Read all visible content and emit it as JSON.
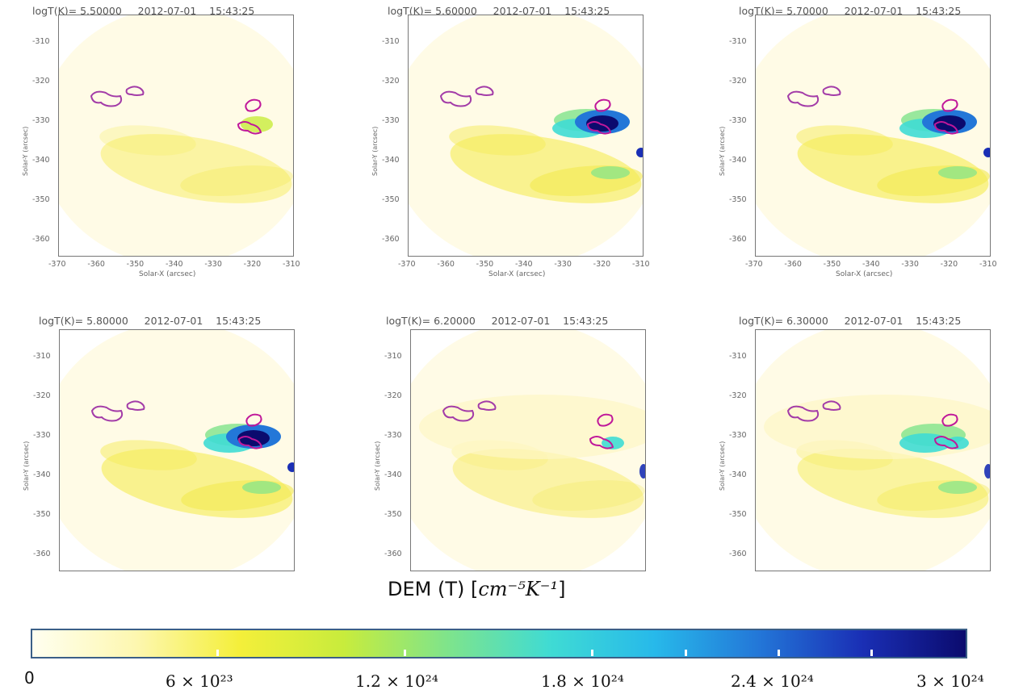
{
  "panels": [
    {
      "title": "logT(K)= 5.50000     2012-07-01    15:43:25",
      "show_xaxis": true,
      "intensity": 0.25
    },
    {
      "title": "logT(K)= 5.60000     2012-07-01    15:43:25",
      "show_xaxis": true,
      "intensity": 0.85
    },
    {
      "title": "logT(K)= 5.70000     2012-07-01    15:43:25",
      "show_xaxis": true,
      "intensity": 0.95
    },
    {
      "title": "logT(K)= 5.80000     2012-07-01    15:43:25",
      "show_xaxis": false,
      "intensity": 0.9
    },
    {
      "title": "logT(K)= 6.20000     2012-07-01    15:43:25",
      "show_xaxis": false,
      "intensity": 0.15
    },
    {
      "title": "logT(K)= 6.30000     2012-07-01    15:43:25",
      "show_xaxis": false,
      "intensity": 0.35
    }
  ],
  "axes": {
    "xlabel": "Solar-X (arcsec)",
    "ylabel": "Solar-Y (arcsec)",
    "xticks": [
      "-370",
      "-360",
      "-350",
      "-340",
      "-330",
      "-320",
      "-310"
    ],
    "yticks": [
      "-310",
      "-320",
      "-330",
      "-340",
      "-350",
      "-360"
    ]
  },
  "colorbar": {
    "title_prefix": "DEM (T)  [",
    "title_unit": "cm⁻⁵K⁻¹",
    "title_suffix": "]",
    "ticks": [
      "0",
      "6 × 10²³",
      "1.2 × 10²⁴",
      "1.8 × 10²⁴",
      "2.4 × 10²⁴",
      "3 × 10²⁴"
    ],
    "colors": [
      "#fffff0",
      "#fdf7b0",
      "#f4ef3a",
      "#c8ec3c",
      "#7fe48b",
      "#3fdbd4",
      "#27b9ea",
      "#2377d8",
      "#1a2fb5",
      "#0b0b6e"
    ]
  },
  "chart_data": {
    "type": "heatmap",
    "title": "DEM (T)  [cm⁻⁵K⁻¹]",
    "xlabel": "Solar-X (arcsec)",
    "ylabel": "Solar-Y (arcsec)",
    "xlim": [
      -370,
      -310
    ],
    "ylim": [
      -365,
      -305
    ],
    "colorbar_range": [
      0,
      3e+24
    ],
    "date": "2012-07-01",
    "time": "15:43:25",
    "logT_values": [
      5.5,
      5.6,
      5.7,
      5.8,
      6.2,
      6.3
    ]
  }
}
